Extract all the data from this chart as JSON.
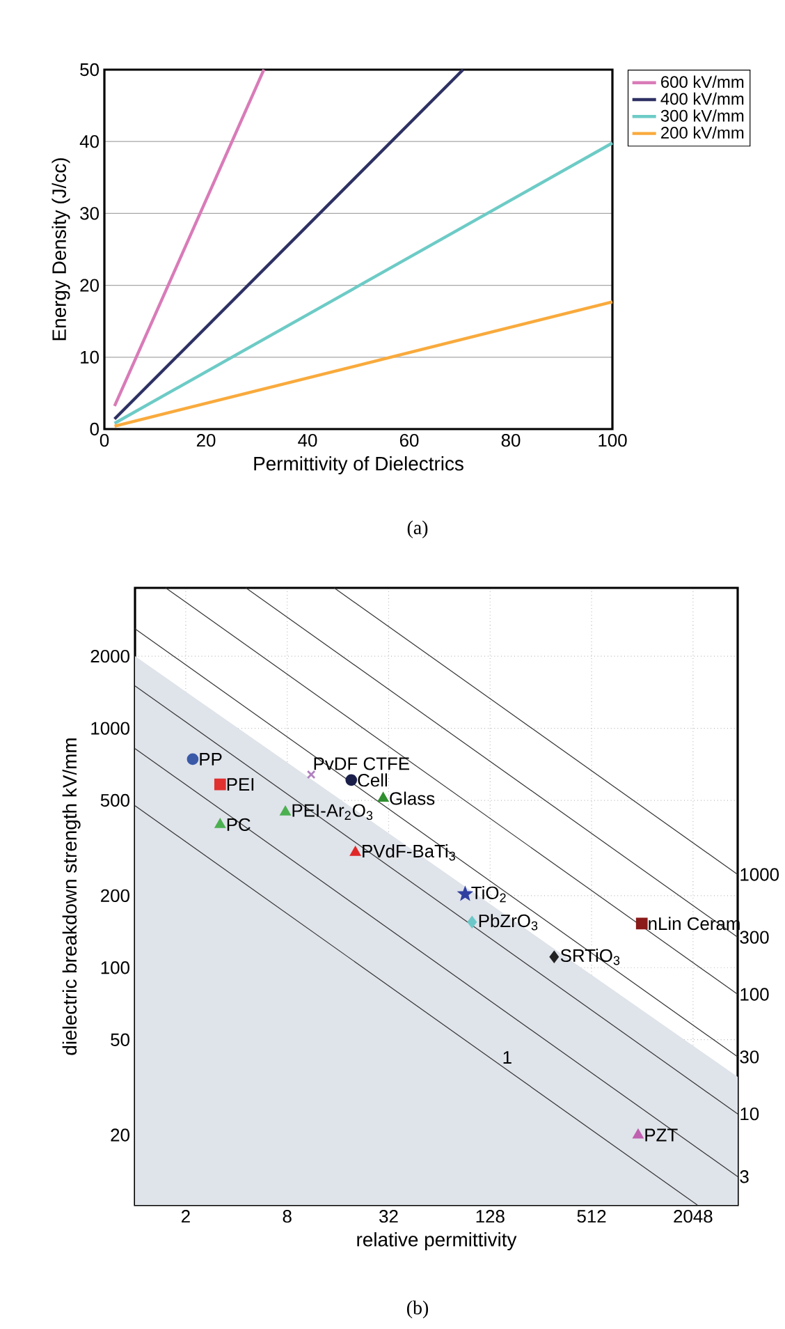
{
  "chart_data": [
    {
      "type": "line",
      "xlabel": "Permittivity of Dielectrics",
      "ylabel": "Energy Density (J/cc)",
      "xlim": [
        0,
        100
      ],
      "ylim": [
        0,
        50
      ],
      "xticks": [
        0,
        20,
        40,
        60,
        80,
        100
      ],
      "yticks": [
        0,
        10,
        20,
        30,
        40,
        50
      ],
      "grid": "y",
      "legend": "top right",
      "annotations": [
        "(a)"
      ],
      "series": [
        {
          "name": "600 kV/mm",
          "color": "#d97bb8",
          "x": [
            2,
            31.4
          ],
          "values": [
            3.2,
            50
          ]
        },
        {
          "name": "400 kV/mm",
          "color": "#2e3163",
          "x": [
            2,
            70.6
          ],
          "values": [
            1.4,
            50
          ]
        },
        {
          "name": "300 kV/mm",
          "color": "#6dcbc6",
          "x": [
            2,
            100
          ],
          "values": [
            0.8,
            39.8
          ]
        },
        {
          "name": "200 kV/mm",
          "color": "#f9aa3c",
          "x": [
            2,
            100
          ],
          "values": [
            0.4,
            17.7
          ]
        }
      ]
    },
    {
      "type": "scatter",
      "xlabel": "relative permittivity",
      "ylabel": "dielectric breakdown strength kV/mm",
      "log": "xy",
      "xlim": [
        1,
        3770
      ],
      "ylim": [
        10.2,
        3860
      ],
      "xticks": [
        2,
        8,
        32,
        128,
        512,
        2048
      ],
      "yticks": [
        20,
        50,
        100,
        200,
        500,
        1000,
        2000
      ],
      "grid": true,
      "annotations": [
        "(b)"
      ],
      "series": [
        {
          "type": "area",
          "color": "#dfe3ea",
          "x": [
            1,
            3770
          ],
          "values": [
            2000,
            35
          ]
        },
        {
          "type": "line",
          "name": "1",
          "color": "#333333",
          "x": [
            1,
            2172
          ],
          "values": [
            475,
            10.2
          ]
        },
        {
          "type": "line",
          "name": "3",
          "color": "#333333",
          "x": [
            1,
            3770
          ],
          "values": [
            823,
            13.4
          ]
        },
        {
          "type": "line",
          "name": "10",
          "color": "#333333",
          "x": [
            1,
            3770
          ],
          "values": [
            1503,
            24.5
          ]
        },
        {
          "type": "line",
          "name": "30",
          "color": "#333333",
          "x": [
            1,
            3770
          ],
          "values": [
            2603,
            42.4
          ]
        },
        {
          "type": "line",
          "name": "100",
          "color": "#333333",
          "x": [
            1.52,
            3770
          ],
          "values": [
            3860,
            77.4
          ]
        },
        {
          "type": "line",
          "name": "300",
          "color": "#333333",
          "x": [
            4.55,
            3770
          ],
          "values": [
            3860,
            134
          ]
        },
        {
          "type": "line",
          "name": "1000",
          "color": "#333333",
          "x": [
            15.2,
            3770
          ],
          "values": [
            3860,
            245
          ]
        },
        {
          "name": "PP",
          "color": "#3a5aa8",
          "marker": "circle",
          "x": [
            2.2
          ],
          "values": [
            743
          ]
        },
        {
          "name": "PEI",
          "color": "#e03030",
          "marker": "square",
          "x": [
            3.2
          ],
          "values": [
            583
          ]
        },
        {
          "name": "PC",
          "color": "#4cb050",
          "marker": "triangle",
          "x": [
            3.2
          ],
          "values": [
            396
          ]
        },
        {
          "name": "PEI-Ar$_{2}$O$_{3}$",
          "color": "#4cb050",
          "marker": "triangle",
          "x": [
            7.8
          ],
          "values": [
            447
          ]
        },
        {
          "name": "PvDF CTFE",
          "color": "#b080c0",
          "marker": "cross",
          "x": [
            11.1
          ],
          "values": [
            641
          ]
        },
        {
          "name": "Cell",
          "color": "#1a1f4a",
          "marker": "circle",
          "x": [
            19.2
          ],
          "values": [
            608
          ]
        },
        {
          "name": "Glass",
          "color": "#2f8f2f",
          "marker": "triangle",
          "x": [
            29.7
          ],
          "values": [
            510
          ]
        },
        {
          "name": "PVdF-BaTi$_{3}$",
          "color": "#e02828",
          "marker": "triangle",
          "x": [
            20.3
          ],
          "values": [
            303
          ]
        },
        {
          "name": "TiO$_{2}$",
          "color": "#3040a0",
          "marker": "star",
          "x": [
            91
          ],
          "values": [
            203
          ]
        },
        {
          "name": "PbZrO$_{3}$",
          "color": "#6cc8c8",
          "marker": "diamond",
          "x": [
            100
          ],
          "values": [
            155
          ]
        },
        {
          "name": "SRTiO$_{3}$",
          "color": "#222222",
          "marker": "diamond",
          "x": [
            307
          ],
          "values": [
            111
          ]
        },
        {
          "name": "nLin Ceram",
          "color": "#8b1a1a",
          "marker": "square",
          "x": [
            1017
          ],
          "values": [
            153
          ]
        },
        {
          "name": "PZT",
          "color": "#c060b0",
          "marker": "triangle",
          "x": [
            967
          ],
          "values": [
            20
          ]
        }
      ]
    }
  ]
}
